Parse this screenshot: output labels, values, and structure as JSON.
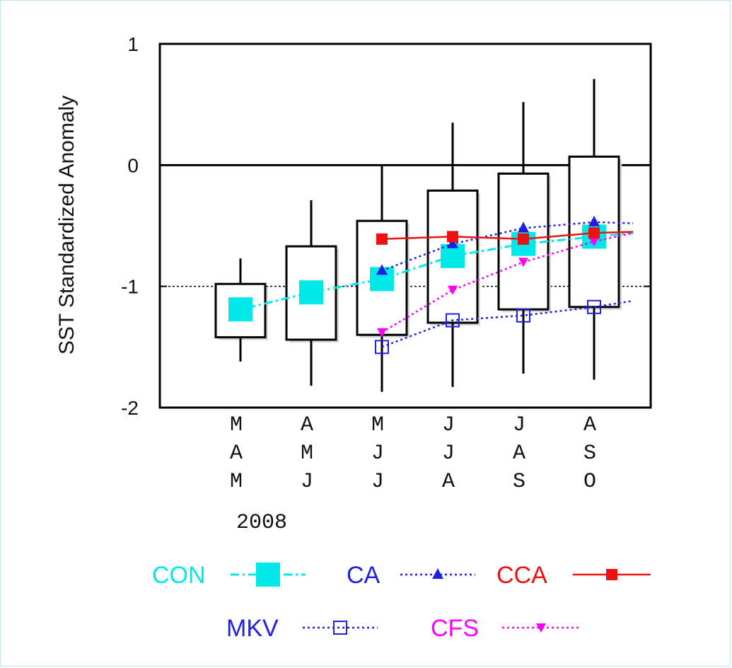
{
  "chart_data": {
    "type": "box",
    "ylabel": "SST Standardized Anomaly",
    "ylim": [
      -2,
      1
    ],
    "yticks": [
      "1",
      "0",
      "-1",
      "-2"
    ],
    "yref_line": -1,
    "categories": [
      [
        "M",
        "A",
        "M"
      ],
      [
        "A",
        "M",
        "J"
      ],
      [
        "M",
        "J",
        "J"
      ],
      [
        "J",
        "J",
        "A"
      ],
      [
        "J",
        "A",
        "S"
      ],
      [
        "A",
        "S",
        "O"
      ]
    ],
    "year_label": "2008",
    "boxes": [
      {
        "low": -1.62,
        "q1": -1.42,
        "q3": -0.98,
        "high": -0.77
      },
      {
        "low": -1.82,
        "q1": -1.44,
        "q3": -0.67,
        "high": -0.29
      },
      {
        "low": -1.87,
        "q1": -1.4,
        "q3": -0.46,
        "high": 0.0
      },
      {
        "low": -1.83,
        "q1": -1.3,
        "q3": -0.21,
        "high": 0.35
      },
      {
        "low": -1.72,
        "q1": -1.19,
        "q3": -0.07,
        "high": 0.52
      },
      {
        "low": -1.77,
        "q1": -1.17,
        "q3": 0.07,
        "high": 0.71
      }
    ],
    "series": [
      {
        "name": "CON",
        "color": "#00e8e8",
        "marker": "square-big",
        "line": "dashdot",
        "x": [
          -0.1,
          0.0,
          1.0,
          2.0,
          3.0,
          4.0,
          5.0,
          5.55
        ],
        "y": [
          -1.26,
          -1.19,
          -1.05,
          -0.94,
          -0.75,
          -0.65,
          -0.59,
          -0.56
        ]
      },
      {
        "name": "CA",
        "color": "#2020e0",
        "marker": "triangle-up",
        "line": "dotted",
        "x": [
          2.0,
          3.0,
          4.0,
          5.0,
          5.55
        ],
        "y": [
          -0.87,
          -0.65,
          -0.52,
          -0.47,
          -0.48
        ]
      },
      {
        "name": "CCA",
        "color": "#ee1111",
        "marker": "square-filled",
        "line": "solid",
        "x": [
          2.0,
          3.0,
          4.0,
          5.0,
          5.55
        ],
        "y": [
          -0.61,
          -0.59,
          -0.61,
          -0.56,
          -0.55
        ]
      },
      {
        "name": "MKV",
        "color": "#2020e0",
        "marker": "square-open",
        "line": "dotted",
        "x": [
          2.0,
          3.0,
          4.0,
          5.0,
          5.55
        ],
        "y": [
          -1.5,
          -1.28,
          -1.24,
          -1.17,
          -1.12
        ]
      },
      {
        "name": "CFS",
        "color": "#ff00ff",
        "marker": "triangle-down",
        "line": "dotted",
        "x": [
          2.0,
          3.0,
          4.0,
          5.0,
          5.55
        ],
        "y": [
          -1.38,
          -1.03,
          -0.8,
          -0.63,
          -0.56
        ]
      }
    ],
    "legend": [
      "CON",
      "CA",
      "CCA",
      "MKV",
      "CFS"
    ],
    "grid": false
  }
}
